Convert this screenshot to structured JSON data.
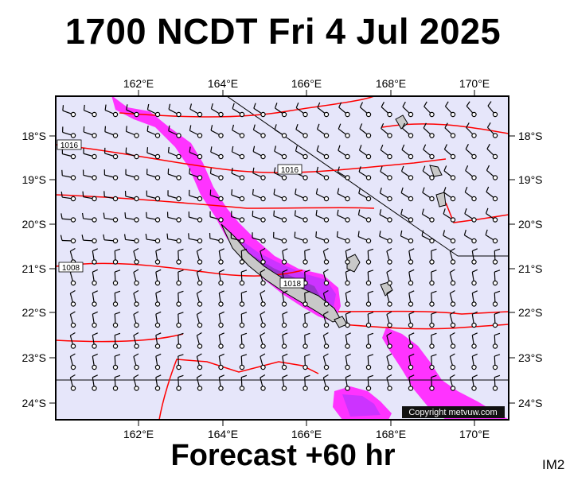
{
  "title": "1700 NCDT Fri 4 Jul 2025",
  "footer": "Forecast +60 hr",
  "image_tag": "IM2",
  "copyright": "Copyright metvuw.com",
  "longitude_labels": [
    "162°E",
    "164°E",
    "166°E",
    "168°E",
    "170°E"
  ],
  "latitude_labels": [
    "18°S",
    "19°S",
    "20°S",
    "21°S",
    "22°S",
    "23°S",
    "24°S"
  ],
  "isobar_labels": [
    "1016",
    "1016",
    "1008",
    "1018"
  ],
  "colors": {
    "background": "#e6e6fa",
    "isobar": "#ff0000",
    "precip_light": "#ff33ff",
    "precip_medium": "#cc33ff",
    "precip_heavy": "#9933cc",
    "land": "#c8c8c8"
  },
  "map_features": [
    "wind-barbs",
    "isobars",
    "precipitation",
    "coastline",
    "grid-lines"
  ]
}
